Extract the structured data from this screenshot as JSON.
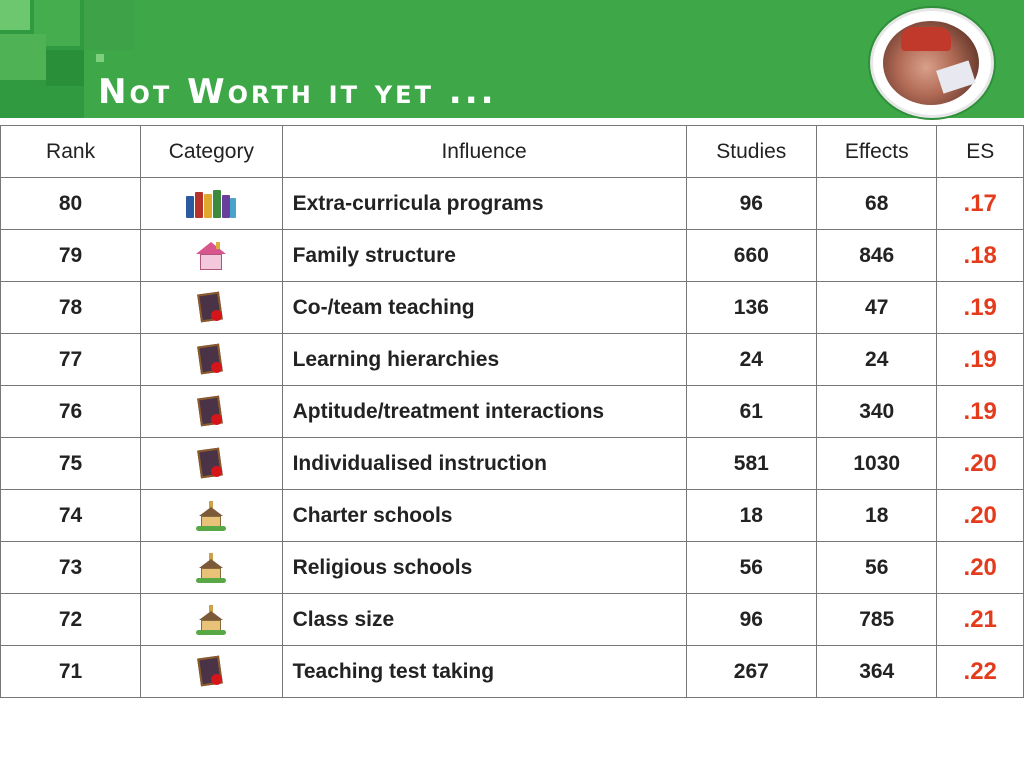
{
  "slide": {
    "title": "Not Worth it yet ...",
    "accent_color": "#3ea848",
    "es_color": "#e33b1c"
  },
  "table": {
    "headers": {
      "rank": "Rank",
      "category": "Category",
      "influence": "Influence",
      "studies": "Studies",
      "effects": "Effects",
      "es": "ES"
    },
    "rows": [
      {
        "rank": "80",
        "category_icon": "books-icon",
        "influence": "Extra-curricula programs",
        "studies": "96",
        "effects": "68",
        "es": ".17"
      },
      {
        "rank": "79",
        "category_icon": "house-icon",
        "influence": "Family structure",
        "studies": "660",
        "effects": "846",
        "es": ".18"
      },
      {
        "rank": "78",
        "category_icon": "slate-apple-icon",
        "influence": "Co-/team teaching",
        "studies": "136",
        "effects": "47",
        "es": ".19"
      },
      {
        "rank": "77",
        "category_icon": "slate-apple-icon",
        "influence": "Learning hierarchies",
        "studies": "24",
        "effects": "24",
        "es": ".19"
      },
      {
        "rank": "76",
        "category_icon": "slate-apple-icon",
        "influence": "Aptitude/treatment interactions",
        "studies": "61",
        "effects": "340",
        "es": ".19"
      },
      {
        "rank": "75",
        "category_icon": "slate-apple-icon",
        "influence": "Individualised instruction",
        "studies": "581",
        "effects": "1030",
        "es": ".20"
      },
      {
        "rank": "74",
        "category_icon": "school-icon",
        "influence": "Charter schools",
        "studies": "18",
        "effects": "18",
        "es": ".20"
      },
      {
        "rank": "73",
        "category_icon": "school-icon",
        "influence": "Religious schools",
        "studies": "56",
        "effects": "56",
        "es": ".20"
      },
      {
        "rank": "72",
        "category_icon": "school-icon",
        "influence": "Class size",
        "studies": "96",
        "effects": "785",
        "es": ".21"
      },
      {
        "rank": "71",
        "category_icon": "slate-apple-icon",
        "influence": "Teaching test taking",
        "studies": "267",
        "effects": "364",
        "es": ".22"
      }
    ]
  }
}
